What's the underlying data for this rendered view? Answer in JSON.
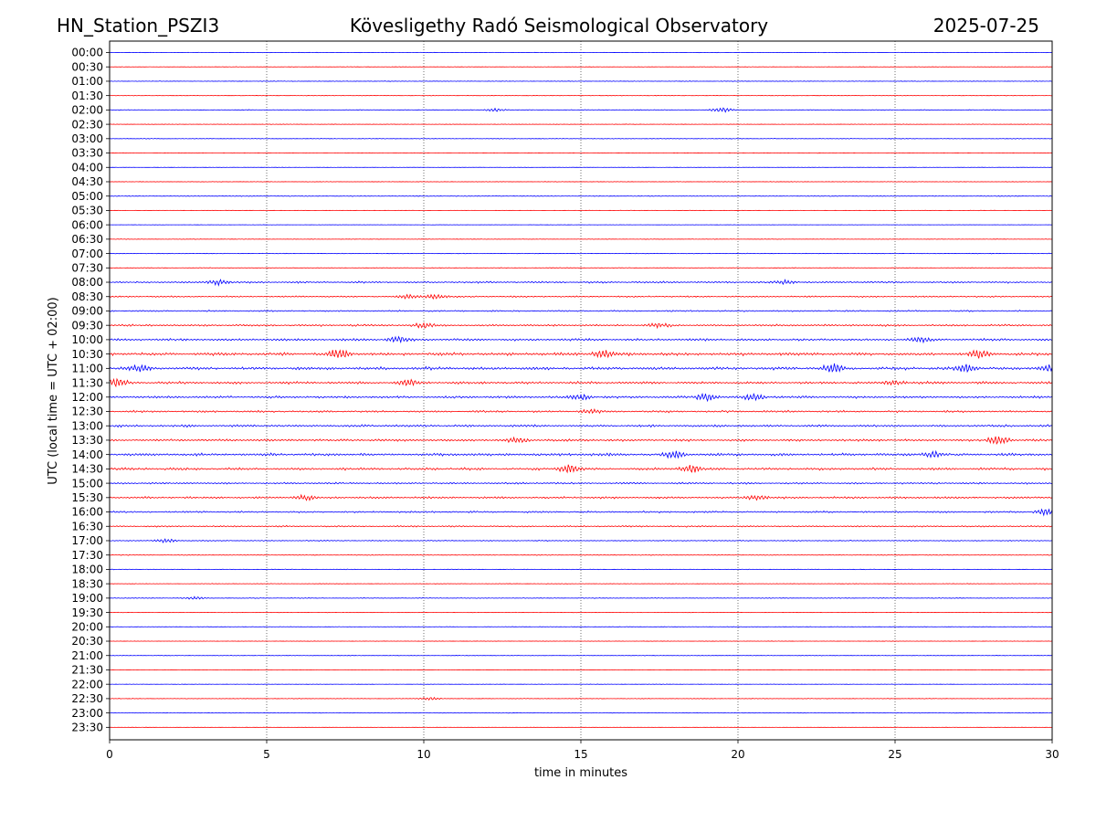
{
  "header": {
    "station": "HN_Station_PSZI3",
    "observatory": "Kövesligethy Radó Seismological Observatory",
    "date": "2025-07-25"
  },
  "chart_data": {
    "type": "line",
    "title": "Kövesligethy Radó Seismological Observatory",
    "xlabel": "time in minutes",
    "ylabel": "UTC (local time = UTC + 02:00)",
    "xlim": [
      0,
      30
    ],
    "xticks": [
      "0",
      "5",
      "10",
      "15",
      "20",
      "25",
      "30"
    ],
    "xtick_values": [
      0,
      5,
      10,
      15,
      20,
      25,
      30
    ],
    "grid": "vertical dotted at x ticks",
    "row_labels": [
      "00:00",
      "00:30",
      "01:00",
      "01:30",
      "02:00",
      "02:30",
      "03:00",
      "03:30",
      "04:00",
      "04:30",
      "05:00",
      "05:30",
      "06:00",
      "06:30",
      "07:00",
      "07:30",
      "08:00",
      "08:30",
      "09:00",
      "09:30",
      "10:00",
      "10:30",
      "11:00",
      "11:30",
      "12:00",
      "12:30",
      "13:00",
      "13:30",
      "14:00",
      "14:30",
      "15:00",
      "15:30",
      "16:00",
      "16:30",
      "17:00",
      "17:30",
      "18:00",
      "18:30",
      "19:00",
      "19:30",
      "20:00",
      "20:30",
      "21:00",
      "21:30",
      "22:00",
      "22:30",
      "23:00",
      "23:30"
    ],
    "row_colors": {
      "even": "#0000ff",
      "odd": "#ff0000"
    },
    "activity_level": [
      0.08,
      0.08,
      0.12,
      0.1,
      0.15,
      0.1,
      0.12,
      0.08,
      0.06,
      0.1,
      0.15,
      0.08,
      0.06,
      0.1,
      0.12,
      0.12,
      0.35,
      0.3,
      0.3,
      0.4,
      0.45,
      0.6,
      0.6,
      0.5,
      0.45,
      0.4,
      0.45,
      0.45,
      0.55,
      0.5,
      0.35,
      0.4,
      0.35,
      0.3,
      0.2,
      0.15,
      0.12,
      0.1,
      0.15,
      0.08,
      0.1,
      0.08,
      0.1,
      0.08,
      0.08,
      0.12,
      0.08,
      0.06
    ],
    "events": [
      {
        "row": 4,
        "x": [
          12.3,
          19.5
        ],
        "amp": [
          0.3,
          0.5
        ]
      },
      {
        "row": 16,
        "x": [
          3.5,
          21.5
        ],
        "amp": [
          0.6,
          0.4
        ]
      },
      {
        "row": 17,
        "x": [
          9.5,
          10.4
        ],
        "amp": [
          0.4,
          0.5
        ]
      },
      {
        "row": 19,
        "x": [
          10.0,
          17.5
        ],
        "amp": [
          0.5,
          0.4
        ]
      },
      {
        "row": 20,
        "x": [
          9.2,
          25.8
        ],
        "amp": [
          0.6,
          0.5
        ]
      },
      {
        "row": 21,
        "x": [
          7.3,
          15.7,
          27.7
        ],
        "amp": [
          0.9,
          0.8,
          0.7
        ]
      },
      {
        "row": 22,
        "x": [
          1.0,
          23.0,
          27.3,
          29.9
        ],
        "amp": [
          0.6,
          0.8,
          0.8,
          0.7
        ]
      },
      {
        "row": 23,
        "x": [
          0.2,
          9.5,
          25.0
        ],
        "amp": [
          0.8,
          0.6,
          0.5
        ]
      },
      {
        "row": 24,
        "x": [
          15.0,
          19.0,
          20.5
        ],
        "amp": [
          0.5,
          0.7,
          0.6
        ]
      },
      {
        "row": 25,
        "x": [
          15.3
        ],
        "amp": [
          0.4
        ]
      },
      {
        "row": 27,
        "x": [
          28.3,
          13.0
        ],
        "amp": [
          1.0,
          0.5
        ]
      },
      {
        "row": 28,
        "x": [
          18.0,
          26.2
        ],
        "amp": [
          0.7,
          0.6
        ]
      },
      {
        "row": 29,
        "x": [
          14.6,
          18.5
        ],
        "amp": [
          0.8,
          0.7
        ]
      },
      {
        "row": 31,
        "x": [
          6.2,
          20.6
        ],
        "amp": [
          0.5,
          0.5
        ]
      },
      {
        "row": 32,
        "x": [
          29.8
        ],
        "amp": [
          0.6
        ]
      },
      {
        "row": 34,
        "x": [
          1.8
        ],
        "amp": [
          0.4
        ]
      },
      {
        "row": 38,
        "x": [
          2.7
        ],
        "amp": [
          0.3
        ]
      },
      {
        "row": 45,
        "x": [
          10.2
        ],
        "amp": [
          0.3
        ]
      }
    ]
  }
}
